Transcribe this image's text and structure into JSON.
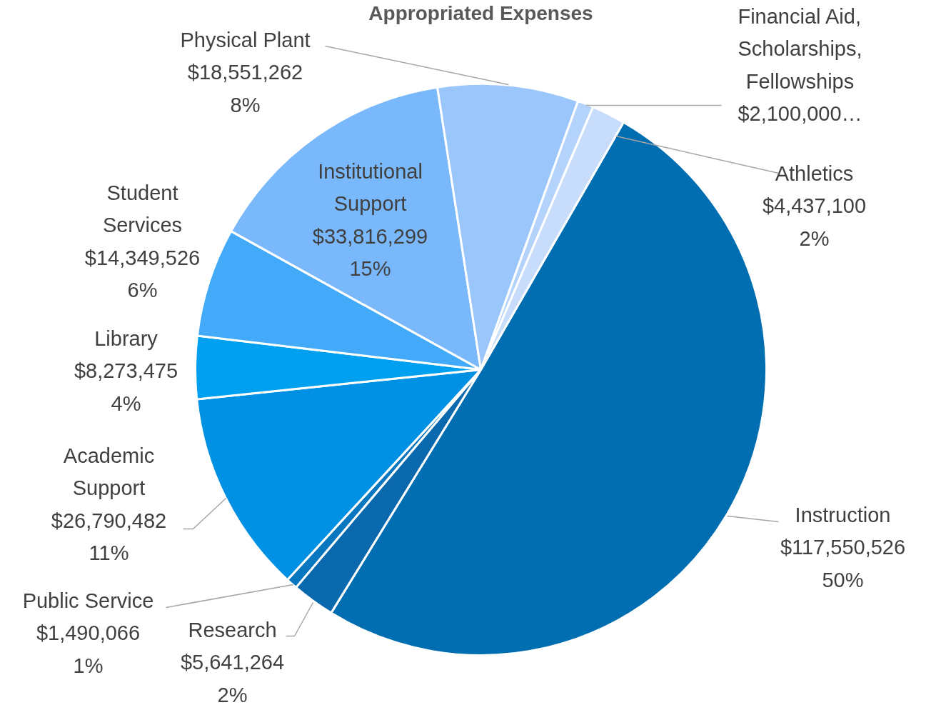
{
  "chart_data": {
    "type": "pie",
    "title": "Appropriated Expenses",
    "categories": [
      "Instruction",
      "Research",
      "Public Service",
      "Academic Support",
      "Library",
      "Student Services",
      "Institutional Support",
      "Physical Plant",
      "Financial Aid, Scholarships, Fellowships",
      "Athletics"
    ],
    "values": [
      117550526,
      5641264,
      1490066,
      26790482,
      8273475,
      14349526,
      33816299,
      18551262,
      2100000,
      4437100
    ],
    "value_labels": [
      "$117,550,526\n50%",
      "$5,641,264\n2%",
      "$1,490,066\n1%",
      "$26,790,482\n11%",
      "$8,273,475\n4%",
      "$14,349,526\n6%",
      "$33,816,299\n15%",
      "$18,551,262\n8%",
      "$2,100,000…",
      "$4,437,100\n2%"
    ],
    "colors": [
      "#006eb0",
      "#0a68ad",
      "#0877c0",
      "#0090e4",
      "#00a0f0",
      "#42aaf8",
      "#7ab8fc",
      "#9ac6fb",
      "#b4d3fc",
      "#c8dcfc"
    ]
  }
}
